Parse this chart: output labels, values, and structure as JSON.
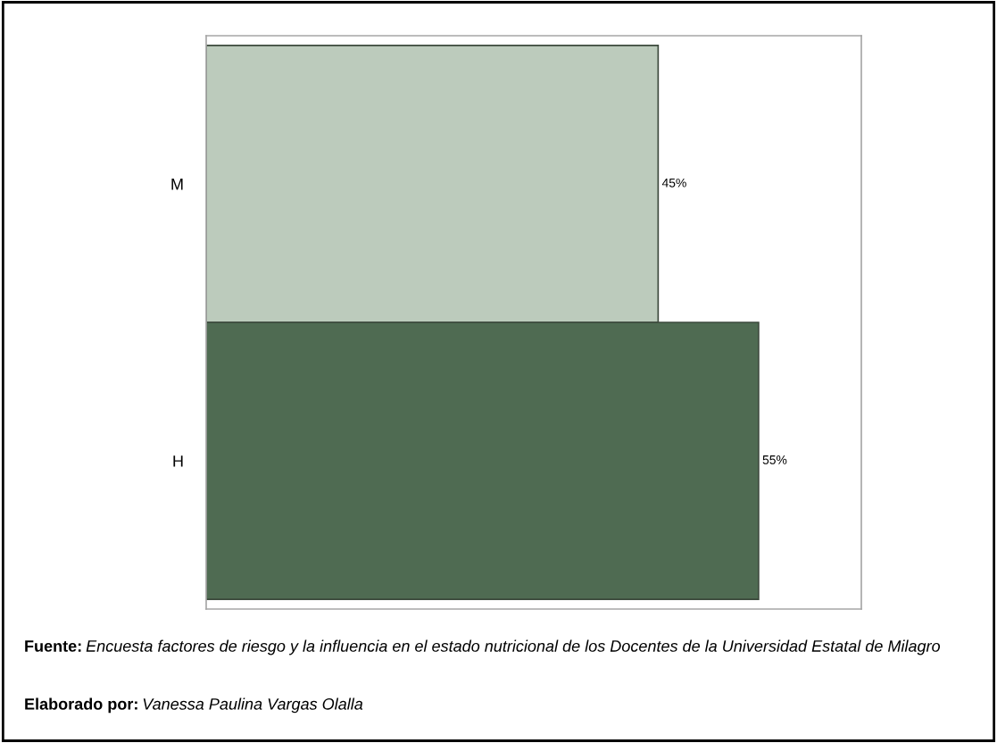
{
  "chart_data": {
    "type": "bar",
    "orientation": "horizontal",
    "categories": [
      "M",
      "H"
    ],
    "values": [
      45,
      55
    ],
    "colors": [
      "#bccbbc",
      "#4f6b52"
    ],
    "value_labels": [
      "45%",
      "55%"
    ],
    "annotations": [
      "Fuente: Encuesta factores de riesgo y la influencia en el estado nutricional de los Docentes de la Universidad Estatal de Milagro",
      "Elaborado por: Vanessa Paulina Vargas Olalla"
    ]
  }
}
